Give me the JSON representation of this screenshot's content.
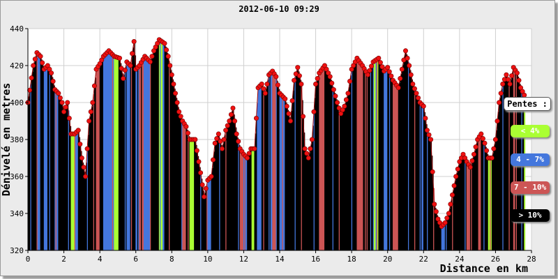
{
  "chart_data": {
    "type": "area",
    "title": "2012-06-10 09:29",
    "xlabel": "Distance en km",
    "ylabel": "Dénivelé en metres",
    "xlim": [
      0,
      28
    ],
    "ylim": [
      320,
      440
    ],
    "x_ticks": [
      "0",
      "2",
      "4",
      "6",
      "8",
      "10",
      "12",
      "14",
      "16",
      "18",
      "20",
      "22",
      "24",
      "26",
      "28"
    ],
    "y_ticks": [
      "320",
      "340",
      "360",
      "380",
      "400",
      "420",
      "440"
    ],
    "grid": true,
    "legend_title": "Pentes :",
    "legend": [
      {
        "label": "< 4%",
        "color": "#aaff33"
      },
      {
        "label": "4 - 7%",
        "color": "#4477dd"
      },
      {
        "label": "7 - 10%",
        "color": "#cc5555"
      },
      {
        "label": "> 10%",
        "color": "#000000"
      }
    ],
    "marker_color": "#ee1111",
    "x": [
      0,
      0.3,
      0.5,
      0.7,
      0.9,
      1.1,
      1.3,
      1.5,
      1.7,
      1.9,
      2.0,
      2.2,
      2.4,
      2.6,
      2.8,
      3.0,
      3.2,
      3.4,
      3.6,
      3.8,
      4.0,
      4.2,
      4.5,
      4.8,
      5.1,
      5.3,
      5.5,
      5.7,
      5.9,
      6.0,
      6.2,
      6.5,
      6.8,
      7.0,
      7.3,
      7.6,
      7.8,
      8.0,
      8.2,
      8.4,
      8.6,
      8.8,
      9.0,
      9.3,
      9.6,
      9.8,
      10.0,
      10.2,
      10.4,
      10.6,
      10.8,
      11.0,
      11.2,
      11.4,
      11.6,
      11.8,
      12.0,
      12.2,
      12.4,
      12.6,
      12.8,
      13.0,
      13.2,
      13.4,
      13.6,
      13.8,
      14.0,
      14.3,
      14.6,
      14.8,
      15.0,
      15.2,
      15.4,
      15.6,
      15.8,
      16.0,
      16.2,
      16.5,
      16.8,
      17.0,
      17.2,
      17.4,
      17.6,
      17.8,
      18.0,
      18.3,
      18.6,
      18.9,
      19.2,
      19.5,
      19.8,
      20.0,
      20.3,
      20.6,
      20.8,
      21.0,
      21.2,
      21.4,
      21.6,
      21.8,
      22.0,
      22.2,
      22.4,
      22.6,
      22.8,
      23.0,
      23.2,
      23.4,
      23.6,
      23.8,
      24.0,
      24.2,
      24.4,
      24.6,
      24.8,
      25.0,
      25.2,
      25.4,
      25.6,
      25.8,
      26.0,
      26.2,
      26.4,
      26.6,
      26.8,
      27.0,
      27.2,
      27.4,
      27.6
    ],
    "values": [
      400,
      420,
      427,
      425,
      418,
      420,
      416,
      407,
      405,
      400,
      395,
      400,
      383,
      383,
      385,
      370,
      360,
      390,
      400,
      418,
      421,
      425,
      428,
      425,
      424,
      413,
      422,
      420,
      433,
      418,
      420,
      425,
      422,
      428,
      434,
      432,
      425,
      415,
      405,
      395,
      390,
      387,
      380,
      380,
      362,
      349,
      358,
      360,
      378,
      383,
      375,
      385,
      390,
      397,
      383,
      375,
      372,
      370,
      375,
      375,
      408,
      410,
      405,
      415,
      417,
      414,
      405,
      402,
      390,
      412,
      419,
      410,
      375,
      370,
      380,
      410,
      416,
      420,
      414,
      407,
      400,
      394,
      398,
      405,
      418,
      424,
      420,
      415,
      422,
      424,
      417,
      419,
      412,
      408,
      418,
      428,
      420,
      410,
      405,
      400,
      398,
      385,
      380,
      345,
      337,
      333,
      335,
      340,
      350,
      360,
      368,
      372,
      368,
      365,
      372,
      380,
      383,
      378,
      370,
      370,
      380,
      400,
      410,
      415,
      410,
      419,
      416,
      408,
      404
    ]
  }
}
